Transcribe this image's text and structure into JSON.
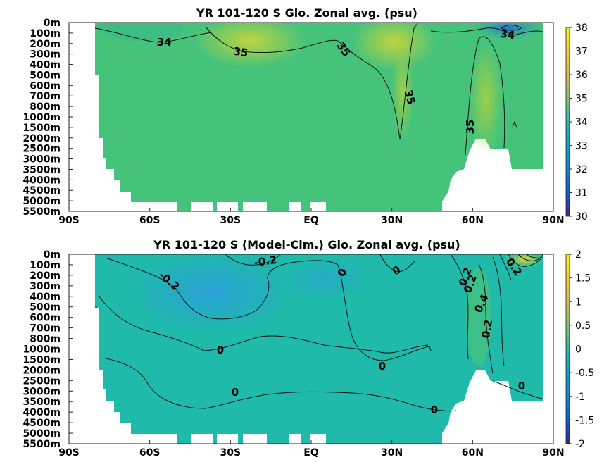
{
  "chart_data": [
    {
      "type": "heatmap",
      "title": "YR 101-120 S Glo. Zonal avg. (psu)",
      "x_ticks": [
        "90S",
        "60S",
        "30S",
        "EQ",
        "30N",
        "60N",
        "90N"
      ],
      "x_values": [
        -90,
        -60,
        -30,
        0,
        30,
        60,
        90
      ],
      "y_ticks": [
        "0m",
        "100m",
        "200m",
        "300m",
        "400m",
        "500m",
        "600m",
        "700m",
        "800m",
        "1000m",
        "1500m",
        "2000m",
        "2500m",
        "3000m",
        "3500m",
        "4000m",
        "4500m",
        "5000m",
        "5500m"
      ],
      "colorbar": {
        "min": 30,
        "max": 38,
        "ticks": [
          30,
          31,
          32,
          33,
          34,
          35,
          36,
          37,
          38
        ]
      },
      "contour_labels": [
        "34",
        "35",
        "35",
        "35",
        "35",
        "34"
      ],
      "colors": {
        "background_field": "#44c47a",
        "high": "#b6d23a",
        "low": "#2a7ec8"
      }
    },
    {
      "type": "heatmap",
      "title": "YR 101-120 S (Model-Clm.) Glo. Zonal avg. (psu)",
      "x_ticks": [
        "90S",
        "60S",
        "30S",
        "EQ",
        "30N",
        "60N",
        "90N"
      ],
      "x_values": [
        -90,
        -60,
        -30,
        0,
        30,
        60,
        90
      ],
      "y_ticks": [
        "0m",
        "100m",
        "200m",
        "300m",
        "400m",
        "500m",
        "600m",
        "700m",
        "800m",
        "1000m",
        "1500m",
        "2000m",
        "2500m",
        "3000m",
        "3500m",
        "4000m",
        "4500m",
        "5000m",
        "5500m"
      ],
      "colorbar": {
        "min": -2,
        "max": 2,
        "ticks": [
          -2,
          -1.5,
          -1,
          -0.5,
          0,
          0.5,
          1,
          1.5,
          2
        ]
      },
      "contour_labels": [
        "-0.2",
        "-0.2",
        "0",
        "0",
        "0",
        "0",
        "0",
        "0",
        "0",
        "0.2",
        "0.4",
        "0.2",
        "0.2",
        "0.2"
      ],
      "colors": {
        "background_field": "#1fb9ad",
        "low": "#2aa3d6",
        "high": "#5cc46a"
      }
    }
  ]
}
